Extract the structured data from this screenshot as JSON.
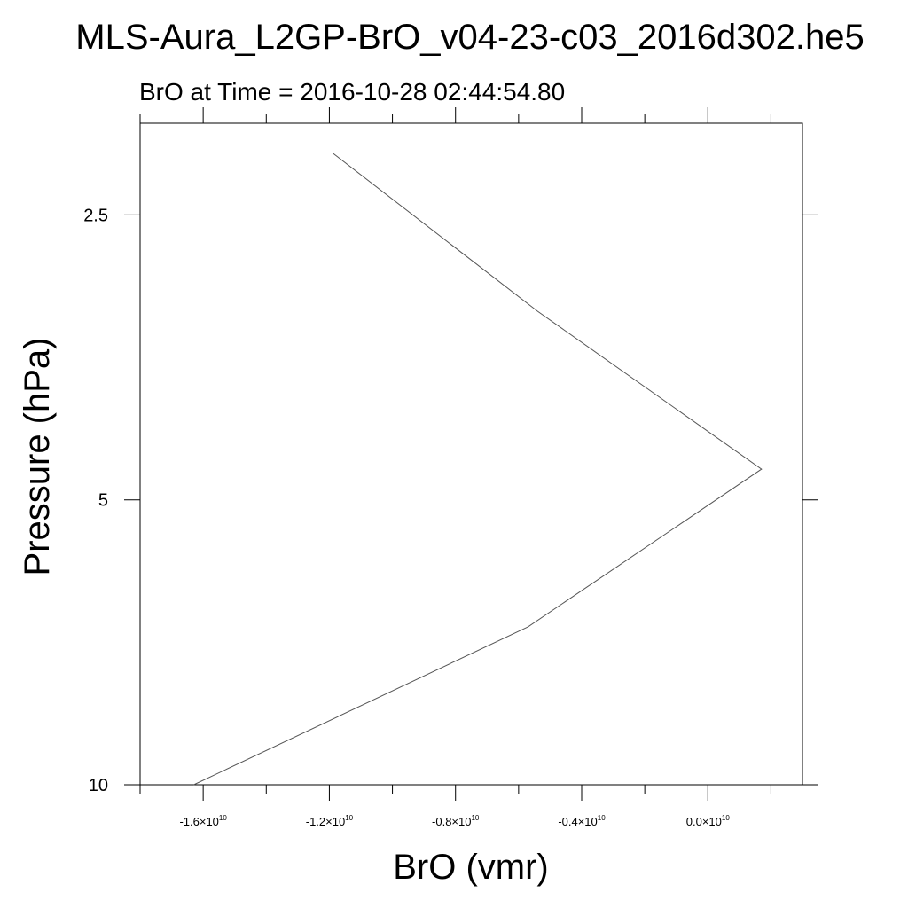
{
  "chart_data": {
    "type": "line",
    "title": "MLS-Aura_L2GP-BrO_v04-23-c03_2016d302.he5",
    "subtitle": "BrO at Time = 2016-10-28 02:44:54.80",
    "xlabel": "BrO (vmr)",
    "ylabel": "Pressure (hPa)",
    "x_axis": {
      "min": -1.8e-10,
      "max": 3e-11,
      "major_ticks": [
        -1.6e-10,
        -1.2e-10,
        -8e-11,
        -4e-11,
        0.0
      ],
      "minor_step": 2e-11,
      "tick_labels": [
        {
          "mant": "-1.6",
          "exp": "10"
        },
        {
          "mant": "-1.2",
          "exp": "10"
        },
        {
          "mant": "-0.8",
          "exp": "10"
        },
        {
          "mant": "-0.4",
          "exp": "10"
        },
        {
          "mant": "0.0",
          "exp": "10"
        }
      ],
      "times_sign": "×"
    },
    "y_axis": {
      "scale": "log",
      "reversed": true,
      "min": 2.0,
      "max": 10,
      "ticks": [
        2.5,
        5,
        10
      ],
      "tick_labels": [
        "2.5",
        "5",
        "10"
      ]
    },
    "series": [
      {
        "x": [
          -1.19e-10,
          -5.4e-11,
          1.7e-11,
          -5.7e-11,
          -1.63e-10
        ],
        "y": [
          2.15,
          3.16,
          4.64,
          6.81,
          10.0
        ]
      }
    ],
    "grid": false,
    "line_color": "#555555"
  }
}
